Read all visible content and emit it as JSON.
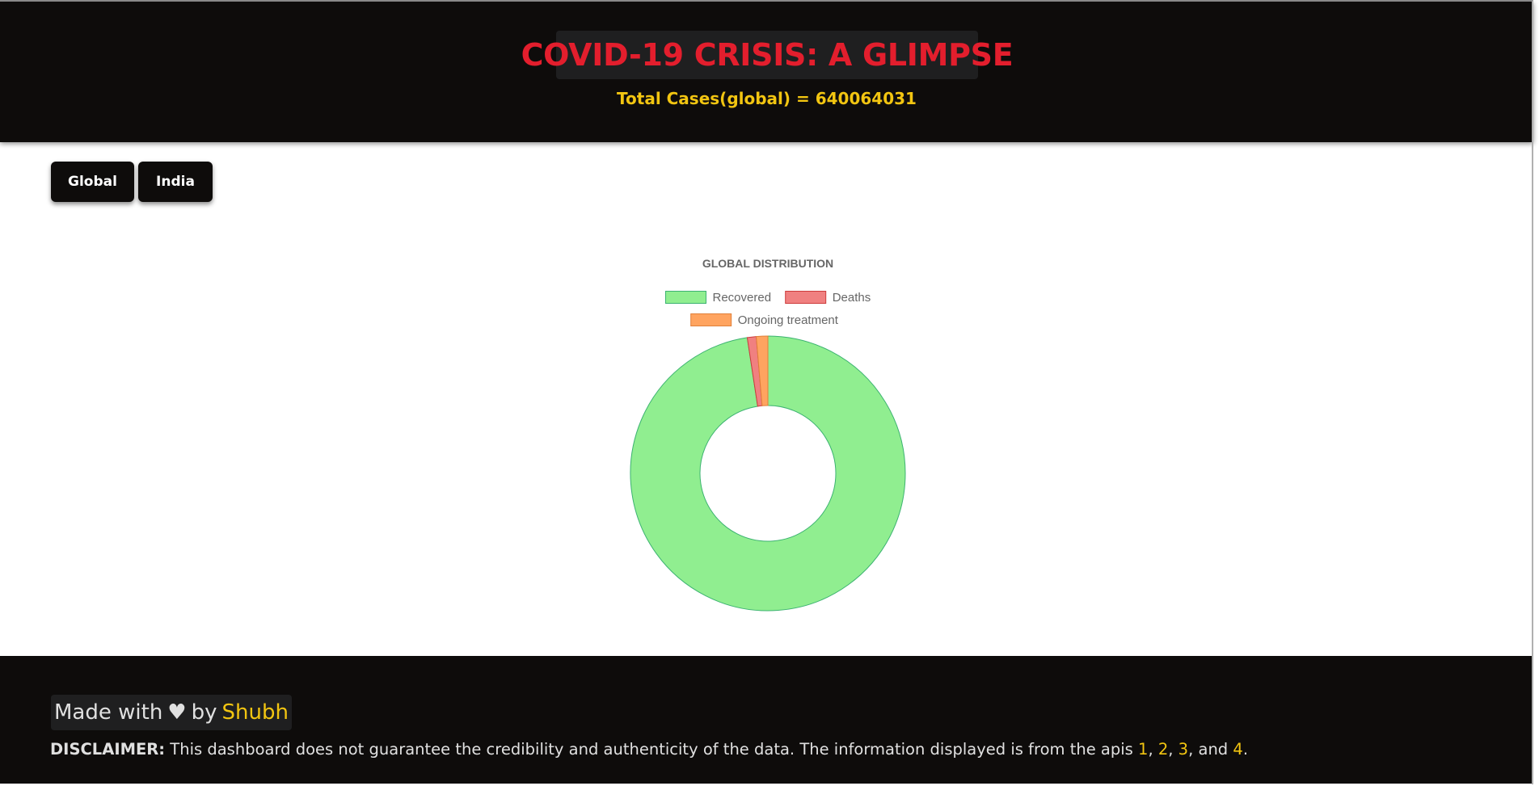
{
  "header": {
    "title": "COVID-19 CRISIS: A GLIMPSE",
    "total_label": "Total Cases(global) = 640064031"
  },
  "tabs": [
    {
      "label": "Global"
    },
    {
      "label": "India"
    }
  ],
  "chart_data": {
    "type": "doughnut",
    "title": "GLOBAL DISTRIBUTION",
    "legend_position": "top",
    "series": [
      {
        "name": "Recovered",
        "value": 0.976,
        "color": "#90ee90",
        "border": "#3cb371"
      },
      {
        "name": "Deaths",
        "value": 0.0105,
        "color": "#f08080",
        "border": "#cd3c3c"
      },
      {
        "name": "Ongoing treatment",
        "value": 0.0135,
        "color": "#ffa460",
        "border": "#e0803a"
      }
    ]
  },
  "footer": {
    "made_prefix": "Made with",
    "heart": "♥",
    "by": "by",
    "author": "Shubh",
    "disclaimer_label": "DISCLAIMER:",
    "disclaimer_text": " This dashboard does not guarantee the credibility and authenticity of the data. The information displayed is from the apis ",
    "api_links": [
      "1",
      "2",
      "3",
      "4"
    ],
    "sep1": ", ",
    "sep2": ", ",
    "sep3": ", and ",
    "end": "."
  },
  "colors": {
    "header_bg": "#0e0c0b",
    "title_red": "#e31e2d",
    "accent_yellow": "#f2c511"
  }
}
